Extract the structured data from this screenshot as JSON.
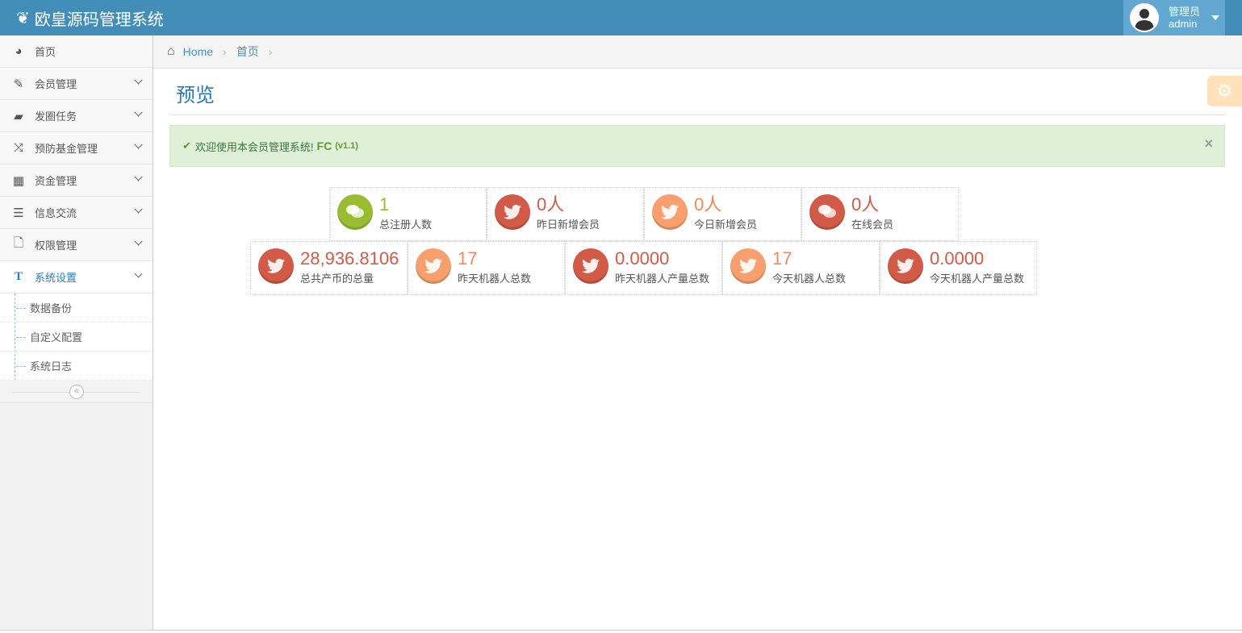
{
  "navbar": {
    "brand": "欧皇源码管理系统",
    "user_role": "管理员",
    "user_name": "admin"
  },
  "sidebar": {
    "items": [
      {
        "label": "首页",
        "icon": "dashboard-icon"
      },
      {
        "label": "会员管理",
        "icon": "edit-icon"
      },
      {
        "label": "发圈任务",
        "icon": "book-icon"
      },
      {
        "label": "预防基金管理",
        "icon": "random-icon"
      },
      {
        "label": "资金管理",
        "icon": "calendar-icon"
      },
      {
        "label": "信息交流",
        "icon": "list-icon"
      },
      {
        "label": "权限管理",
        "icon": "file-icon"
      },
      {
        "label": "系统设置",
        "icon": "text-icon"
      }
    ],
    "subitems": [
      "数据备份",
      "自定义配置",
      "系统日志"
    ]
  },
  "breadcrumb": {
    "home": "Home",
    "current": "首页"
  },
  "page": {
    "title": "预览"
  },
  "alert": {
    "text": "欢迎使用本会员管理系统!",
    "brand": "FC",
    "version": "(v1.1)"
  },
  "stats": {
    "row1": [
      {
        "value": "1",
        "label": "总注册人数",
        "color": "green",
        "icon": "comments-icon"
      },
      {
        "value": "0人",
        "label": "昨日新增会员",
        "color": "red",
        "icon": "twitter-icon"
      },
      {
        "value": "0人",
        "label": "今日新增会员",
        "color": "orange",
        "icon": "twitter-icon"
      },
      {
        "value": "0人",
        "label": "在线会员",
        "color": "red",
        "icon": "comments-icon"
      }
    ],
    "row2": [
      {
        "value": "28,936.8106",
        "label": "总共产币的总量",
        "color": "red",
        "icon": "twitter-icon"
      },
      {
        "value": "17",
        "label": "昨天机器人总数",
        "color": "orange",
        "icon": "twitter-icon"
      },
      {
        "value": "0.0000",
        "label": "昨天机器人产量总数",
        "color": "red",
        "icon": "twitter-icon"
      },
      {
        "value": "17",
        "label": "今天机器人总数",
        "color": "orange",
        "icon": "twitter-icon"
      },
      {
        "value": "0.0000",
        "label": "今天机器人产量总数",
        "color": "red",
        "icon": "twitter-icon"
      }
    ]
  },
  "colors": {
    "navbar": "#438eb9",
    "green": "#9abc32",
    "red": "#d15b47",
    "orange": "#f7a06e"
  }
}
